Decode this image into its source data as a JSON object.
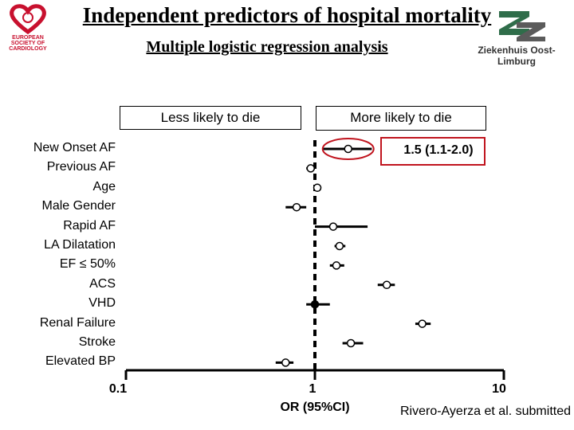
{
  "title": "Independent predictors of hospital mortality",
  "subtitle": "Multiple logistic regression analysis",
  "logos": {
    "left_text": "EUROPEAN SOCIETY OF CARDIOLOGY",
    "right_text": "Ziekenhuis Oost-Limburg",
    "left_color": "#c8102e",
    "right_color": "#2f6d4a"
  },
  "boxes": {
    "left": "Less likely to die",
    "right": "More likely to die"
  },
  "annotation": {
    "text": "1.5  (1.1-2.0)",
    "highlight_color": "#c0141e"
  },
  "citation": "Rivero-Ayerza et al. submitted",
  "chart_data": {
    "type": "forest",
    "xlabel": "OR (95%CI)",
    "x_scale": "log",
    "xlim": [
      0.1,
      10
    ],
    "xticks": [
      "0.1",
      "1",
      "10"
    ],
    "reference_line": 1,
    "predictors": [
      {
        "label": "New Onset AF",
        "or": 1.5,
        "ci": [
          1.1,
          2.0
        ],
        "filled": false
      },
      {
        "label": "Previous AF",
        "or": 0.95,
        "ci": [
          0.9,
          1.0
        ],
        "filled": false
      },
      {
        "label": "Age",
        "or": 1.03,
        "ci": [
          1.01,
          1.05
        ],
        "filled": false
      },
      {
        "label": "Male Gender",
        "or": 0.8,
        "ci": [
          0.7,
          0.9
        ],
        "filled": false
      },
      {
        "label": "Rapid AF",
        "or": 1.25,
        "ci": [
          1.0,
          1.9
        ],
        "filled": false
      },
      {
        "label": "LA Dilatation",
        "or": 1.35,
        "ci": [
          1.27,
          1.45
        ],
        "filled": false
      },
      {
        "label": "EF ≤ 50%",
        "or": 1.3,
        "ci": [
          1.2,
          1.43
        ],
        "filled": false
      },
      {
        "label": "ACS",
        "or": 2.4,
        "ci": [
          2.15,
          2.65
        ],
        "filled": false
      },
      {
        "label": "VHD",
        "or": 1.0,
        "ci": [
          0.9,
          1.2
        ],
        "filled": true
      },
      {
        "label": "Renal Failure",
        "or": 3.7,
        "ci": [
          3.4,
          4.1
        ],
        "filled": false
      },
      {
        "label": "Stroke",
        "or": 1.55,
        "ci": [
          1.4,
          1.8
        ],
        "filled": false
      },
      {
        "label": "Elevated BP",
        "or": 0.7,
        "ci": [
          0.62,
          0.77
        ],
        "filled": false
      }
    ]
  }
}
